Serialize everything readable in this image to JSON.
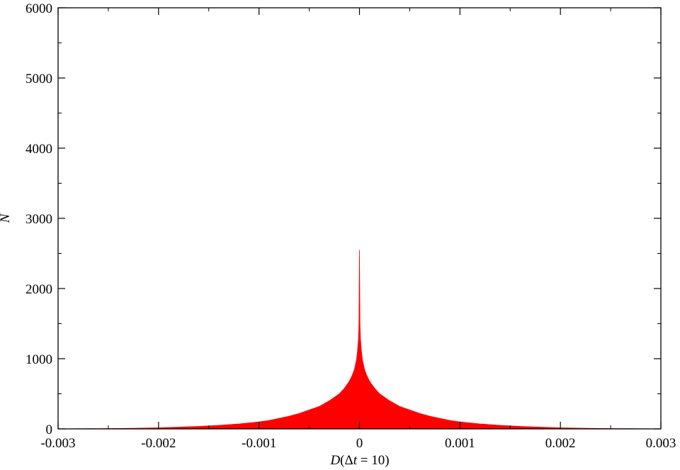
{
  "chart_data": {
    "type": "area",
    "title": "",
    "xlabel_parts": {
      "var": "D",
      "open": "(Δ",
      "t": "t",
      "rest": " = 10)"
    },
    "ylabel": "N",
    "xlim": [
      -0.003,
      0.003
    ],
    "ylim": [
      0,
      6000
    ],
    "xticks": [
      -0.003,
      -0.002,
      -0.001,
      0,
      0.001,
      0.002,
      0.003
    ],
    "xtick_labels": [
      "-0.003",
      "-0.002",
      "-0.001",
      "0",
      "0.001",
      "0.002",
      "0.003"
    ],
    "yticks": [
      0,
      1000,
      2000,
      3000,
      4000,
      5000,
      6000
    ],
    "ytick_labels": [
      "0",
      "1000",
      "2000",
      "3000",
      "4000",
      "5000",
      "6000"
    ],
    "grid": false,
    "series": [
      {
        "color": "#ff0000",
        "x": [
          -0.003,
          -0.0028,
          -0.0026,
          -0.0024,
          -0.0022,
          -0.002,
          -0.0018,
          -0.0016,
          -0.0014,
          -0.0012,
          -0.001,
          -0.0009,
          -0.0008,
          -0.0007,
          -0.0006,
          -0.0005,
          -0.0004,
          -0.0003,
          -0.0002,
          -0.00015,
          -0.0001,
          -7e-05,
          -5e-05,
          -3e-05,
          -2e-05,
          -1e-05,
          -5e-06,
          0,
          5e-06,
          1e-05,
          2e-05,
          3e-05,
          5e-05,
          7e-05,
          0.0001,
          0.00015,
          0.0002,
          0.0003,
          0.0004,
          0.0005,
          0.0006,
          0.0007,
          0.0008,
          0.0009,
          0.001,
          0.0012,
          0.0014,
          0.0016,
          0.0018,
          0.002,
          0.0022,
          0.0024,
          0.0026,
          0.0028,
          0.003
        ],
        "y": [
          0,
          2,
          4,
          6,
          10,
          15,
          25,
          35,
          50,
          70,
          100,
          120,
          150,
          180,
          220,
          270,
          320,
          400,
          500,
          580,
          680,
          770,
          850,
          980,
          1100,
          1280,
          1500,
          2550,
          1500,
          1280,
          1100,
          980,
          850,
          770,
          680,
          580,
          500,
          400,
          320,
          270,
          220,
          180,
          150,
          120,
          100,
          70,
          50,
          35,
          25,
          15,
          10,
          6,
          4,
          2,
          0
        ]
      }
    ]
  }
}
